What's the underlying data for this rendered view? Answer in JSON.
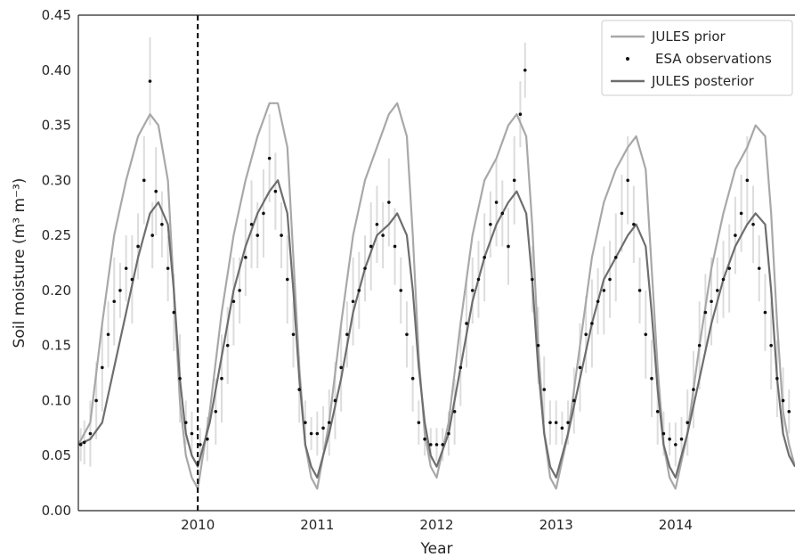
{
  "chart_data": {
    "type": "line",
    "title": "",
    "xlabel": "Year",
    "ylabel": "Soil moisture (m³ m⁻³)",
    "xlim": [
      2009.0,
      2015.0
    ],
    "ylim": [
      0.0,
      0.45
    ],
    "x_ticks": [
      2010,
      2011,
      2012,
      2013,
      2014
    ],
    "x_tick_labels": [
      "2010",
      "2011",
      "2012",
      "2013",
      "2014"
    ],
    "y_ticks": [
      0.0,
      0.05,
      0.1,
      0.15,
      0.2,
      0.25,
      0.3,
      0.35,
      0.4,
      0.45
    ],
    "y_tick_labels": [
      "0.00",
      "0.05",
      "0.10",
      "0.15",
      "0.20",
      "0.25",
      "0.30",
      "0.35",
      "0.40",
      "0.45"
    ],
    "grid": false,
    "legend_position": "top-right",
    "vertical_line": {
      "x": 2010.0,
      "style": "dashed",
      "color": "#000000"
    },
    "colors": {
      "prior": "#a8a8a8",
      "posterior": "#6e6e6e",
      "observations": "#111111",
      "error_bars": "#dcdcdc"
    },
    "series": [
      {
        "name": "JULES prior",
        "style": "line",
        "x": [
          2009.0,
          2009.1,
          2009.2,
          2009.3,
          2009.4,
          2009.5,
          2009.6,
          2009.67,
          2009.75,
          2009.8,
          2009.85,
          2009.9,
          2009.95,
          2010.0,
          2010.1,
          2010.2,
          2010.3,
          2010.4,
          2010.5,
          2010.6,
          2010.67,
          2010.75,
          2010.8,
          2010.85,
          2010.9,
          2010.95,
          2011.0,
          2011.1,
          2011.2,
          2011.3,
          2011.4,
          2011.5,
          2011.6,
          2011.67,
          2011.75,
          2011.8,
          2011.85,
          2011.9,
          2011.95,
          2012.0,
          2012.1,
          2012.2,
          2012.3,
          2012.4,
          2012.5,
          2012.6,
          2012.67,
          2012.75,
          2012.8,
          2012.85,
          2012.9,
          2012.95,
          2013.0,
          2013.1,
          2013.2,
          2013.3,
          2013.4,
          2013.5,
          2013.6,
          2013.67,
          2013.75,
          2013.8,
          2013.85,
          2013.9,
          2013.95,
          2014.0,
          2014.1,
          2014.2,
          2014.3,
          2014.4,
          2014.5,
          2014.6,
          2014.67,
          2014.75,
          2014.8,
          2014.85,
          2014.9,
          2014.95,
          2015.0
        ],
        "values": [
          0.06,
          0.08,
          0.17,
          0.25,
          0.3,
          0.34,
          0.36,
          0.35,
          0.3,
          0.2,
          0.1,
          0.05,
          0.03,
          0.02,
          0.09,
          0.18,
          0.25,
          0.3,
          0.34,
          0.37,
          0.37,
          0.33,
          0.23,
          0.13,
          0.06,
          0.03,
          0.02,
          0.08,
          0.17,
          0.25,
          0.3,
          0.33,
          0.36,
          0.37,
          0.34,
          0.25,
          0.14,
          0.07,
          0.04,
          0.03,
          0.08,
          0.17,
          0.25,
          0.3,
          0.32,
          0.35,
          0.36,
          0.34,
          0.26,
          0.15,
          0.07,
          0.03,
          0.02,
          0.07,
          0.15,
          0.23,
          0.28,
          0.31,
          0.33,
          0.34,
          0.31,
          0.22,
          0.13,
          0.06,
          0.03,
          0.02,
          0.07,
          0.15,
          0.22,
          0.27,
          0.31,
          0.33,
          0.35,
          0.34,
          0.27,
          0.17,
          0.09,
          0.06,
          0.04
        ]
      },
      {
        "name": "ESA observations",
        "style": "points",
        "x": [
          2009.02,
          2009.05,
          2009.1,
          2009.15,
          2009.2,
          2009.25,
          2009.3,
          2009.35,
          2009.4,
          2009.45,
          2009.5,
          2009.55,
          2009.6,
          2009.62,
          2009.65,
          2009.7,
          2009.75,
          2009.8,
          2009.85,
          2009.9,
          2009.95,
          2010.02,
          2010.08,
          2010.15,
          2010.2,
          2010.25,
          2010.3,
          2010.35,
          2010.4,
          2010.45,
          2010.5,
          2010.55,
          2010.6,
          2010.65,
          2010.7,
          2010.75,
          2010.8,
          2010.85,
          2010.9,
          2010.95,
          2011.0,
          2011.05,
          2011.1,
          2011.15,
          2011.2,
          2011.25,
          2011.3,
          2011.35,
          2011.4,
          2011.45,
          2011.5,
          2011.55,
          2011.6,
          2011.65,
          2011.7,
          2011.75,
          2011.8,
          2011.85,
          2011.9,
          2011.95,
          2012.0,
          2012.05,
          2012.1,
          2012.15,
          2012.2,
          2012.25,
          2012.3,
          2012.35,
          2012.4,
          2012.45,
          2012.5,
          2012.55,
          2012.6,
          2012.65,
          2012.7,
          2012.74,
          2012.8,
          2012.85,
          2012.9,
          2012.95,
          2013.0,
          2013.05,
          2013.1,
          2013.15,
          2013.2,
          2013.25,
          2013.3,
          2013.35,
          2013.4,
          2013.45,
          2013.5,
          2013.55,
          2013.6,
          2013.65,
          2013.7,
          2013.75,
          2013.8,
          2013.85,
          2013.9,
          2013.95,
          2014.0,
          2014.05,
          2014.1,
          2014.15,
          2014.2,
          2014.25,
          2014.3,
          2014.35,
          2014.4,
          2014.45,
          2014.5,
          2014.55,
          2014.6,
          2014.65,
          2014.7,
          2014.75,
          2014.8,
          2014.85,
          2014.9,
          2014.95
        ],
        "values": [
          0.06,
          0.062,
          0.07,
          0.1,
          0.13,
          0.16,
          0.19,
          0.2,
          0.22,
          0.21,
          0.24,
          0.3,
          0.39,
          0.25,
          0.29,
          0.26,
          0.22,
          0.18,
          0.12,
          0.08,
          0.07,
          0.06,
          0.065,
          0.09,
          0.12,
          0.15,
          0.19,
          0.2,
          0.23,
          0.26,
          0.25,
          0.27,
          0.32,
          0.29,
          0.25,
          0.21,
          0.16,
          0.11,
          0.08,
          0.07,
          0.07,
          0.075,
          0.08,
          0.1,
          0.13,
          0.16,
          0.19,
          0.2,
          0.22,
          0.24,
          0.26,
          0.25,
          0.28,
          0.24,
          0.2,
          0.16,
          0.12,
          0.08,
          0.065,
          0.06,
          0.06,
          0.06,
          0.07,
          0.09,
          0.13,
          0.17,
          0.2,
          0.21,
          0.23,
          0.26,
          0.28,
          0.27,
          0.24,
          0.3,
          0.36,
          0.4,
          0.21,
          0.15,
          0.11,
          0.08,
          0.08,
          0.075,
          0.08,
          0.1,
          0.13,
          0.16,
          0.17,
          0.19,
          0.2,
          0.21,
          0.23,
          0.27,
          0.3,
          0.26,
          0.2,
          0.16,
          0.12,
          0.09,
          0.07,
          0.065,
          0.06,
          0.065,
          0.08,
          0.11,
          0.15,
          0.18,
          0.19,
          0.2,
          0.21,
          0.22,
          0.25,
          0.27,
          0.3,
          0.26,
          0.22,
          0.18,
          0.15,
          0.12,
          0.1,
          0.09
        ],
        "error": [
          0.015,
          0.02,
          0.03,
          0.035,
          0.04,
          0.03,
          0.04,
          0.025,
          0.03,
          0.04,
          0.03,
          0.04,
          0.04,
          0.03,
          0.04,
          0.03,
          0.03,
          0.035,
          0.04,
          0.02,
          0.02,
          0.015,
          0.02,
          0.03,
          0.04,
          0.035,
          0.04,
          0.03,
          0.035,
          0.04,
          0.03,
          0.04,
          0.04,
          0.035,
          0.03,
          0.04,
          0.03,
          0.03,
          0.02,
          0.015,
          0.02,
          0.02,
          0.03,
          0.035,
          0.04,
          0.03,
          0.04,
          0.035,
          0.03,
          0.04,
          0.035,
          0.03,
          0.04,
          0.035,
          0.03,
          0.03,
          0.03,
          0.02,
          0.015,
          0.015,
          0.015,
          0.015,
          0.02,
          0.03,
          0.035,
          0.04,
          0.03,
          0.035,
          0.04,
          0.03,
          0.04,
          0.03,
          0.035,
          0.04,
          0.03,
          0.025,
          0.03,
          0.035,
          0.03,
          0.02,
          0.02,
          0.015,
          0.02,
          0.03,
          0.04,
          0.035,
          0.04,
          0.03,
          0.04,
          0.035,
          0.04,
          0.035,
          0.04,
          0.035,
          0.03,
          0.04,
          0.035,
          0.03,
          0.02,
          0.015,
          0.02,
          0.02,
          0.03,
          0.035,
          0.04,
          0.035,
          0.04,
          0.03,
          0.035,
          0.04,
          0.035,
          0.035,
          0.04,
          0.035,
          0.03,
          0.035,
          0.04,
          0.035,
          0.03,
          0.02
        ]
      },
      {
        "name": "JULES posterior",
        "style": "line",
        "x": [
          2009.0,
          2009.1,
          2009.2,
          2009.3,
          2009.4,
          2009.5,
          2009.6,
          2009.67,
          2009.75,
          2009.8,
          2009.85,
          2009.9,
          2009.95,
          2010.0,
          2010.1,
          2010.2,
          2010.3,
          2010.4,
          2010.5,
          2010.6,
          2010.67,
          2010.75,
          2010.8,
          2010.85,
          2010.9,
          2010.95,
          2011.0,
          2011.1,
          2011.2,
          2011.3,
          2011.4,
          2011.5,
          2011.6,
          2011.67,
          2011.75,
          2011.8,
          2011.85,
          2011.9,
          2011.95,
          2012.0,
          2012.1,
          2012.2,
          2012.3,
          2012.4,
          2012.5,
          2012.6,
          2012.67,
          2012.75,
          2012.8,
          2012.85,
          2012.9,
          2012.95,
          2013.0,
          2013.1,
          2013.2,
          2013.3,
          2013.4,
          2013.5,
          2013.6,
          2013.67,
          2013.75,
          2013.8,
          2013.85,
          2013.9,
          2013.95,
          2014.0,
          2014.1,
          2014.2,
          2014.3,
          2014.4,
          2014.5,
          2014.6,
          2014.67,
          2014.75,
          2014.8,
          2014.85,
          2014.9,
          2014.95,
          2015.0
        ],
        "values": [
          0.06,
          0.065,
          0.08,
          0.13,
          0.18,
          0.23,
          0.27,
          0.28,
          0.26,
          0.2,
          0.12,
          0.07,
          0.05,
          0.04,
          0.08,
          0.14,
          0.2,
          0.24,
          0.27,
          0.29,
          0.3,
          0.27,
          0.2,
          0.12,
          0.06,
          0.04,
          0.03,
          0.07,
          0.12,
          0.18,
          0.22,
          0.25,
          0.26,
          0.27,
          0.25,
          0.2,
          0.13,
          0.08,
          0.05,
          0.04,
          0.07,
          0.13,
          0.19,
          0.23,
          0.26,
          0.28,
          0.29,
          0.27,
          0.21,
          0.13,
          0.07,
          0.04,
          0.03,
          0.07,
          0.12,
          0.17,
          0.21,
          0.23,
          0.25,
          0.26,
          0.24,
          0.18,
          0.11,
          0.06,
          0.04,
          0.03,
          0.07,
          0.12,
          0.17,
          0.21,
          0.24,
          0.26,
          0.27,
          0.26,
          0.2,
          0.12,
          0.07,
          0.05,
          0.04
        ]
      }
    ]
  }
}
